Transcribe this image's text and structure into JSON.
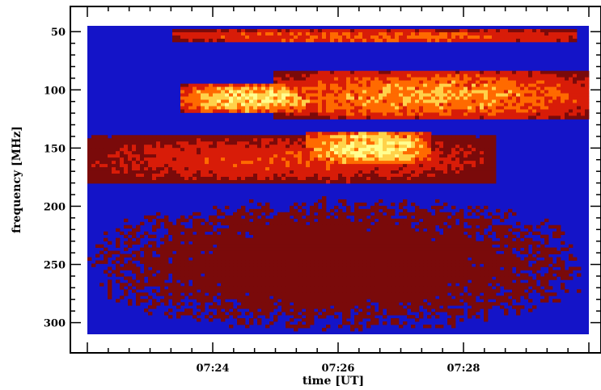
{
  "chart_data": {
    "type": "heatmap",
    "title": "",
    "xlabel": "time [UT]",
    "ylabel": "frequency [MHz]",
    "x_ticks": [
      "07:24",
      "07:26",
      "07:28"
    ],
    "y_ticks": [
      "50",
      "100",
      "150",
      "200",
      "250",
      "300"
    ],
    "y_tick_values": [
      50,
      100,
      150,
      200,
      250,
      300
    ],
    "x_range": [
      "07:22:00",
      "07:30:00"
    ],
    "ylim": [
      310,
      45
    ],
    "y_axis_inverted": true,
    "colormap": [
      "#1414c8",
      "#7a0a0a",
      "#d81c08",
      "#ff6a00",
      "#ffd24a",
      "#ffff90"
    ],
    "emission_regions": [
      {
        "t_start": "07:23:20",
        "t_end": "07:29:50",
        "f_low": 60,
        "f_high": 48,
        "intensity": 0.55
      },
      {
        "t_start": "07:23:30",
        "t_end": "07:25:40",
        "f_low": 120,
        "f_high": 95,
        "intensity": 0.9
      },
      {
        "t_start": "07:25:00",
        "t_end": "07:30:00",
        "f_low": 125,
        "f_high": 85,
        "intensity": 0.7
      },
      {
        "t_start": "07:25:30",
        "t_end": "07:27:30",
        "f_low": 165,
        "f_high": 135,
        "intensity": 0.95
      },
      {
        "t_start": "07:22:00",
        "t_end": "07:28:30",
        "f_low": 180,
        "f_high": 140,
        "intensity": 0.45
      },
      {
        "t_start": "07:22:00",
        "t_end": "07:30:00",
        "f_low": 310,
        "f_high": 190,
        "intensity": 0.18
      }
    ]
  }
}
